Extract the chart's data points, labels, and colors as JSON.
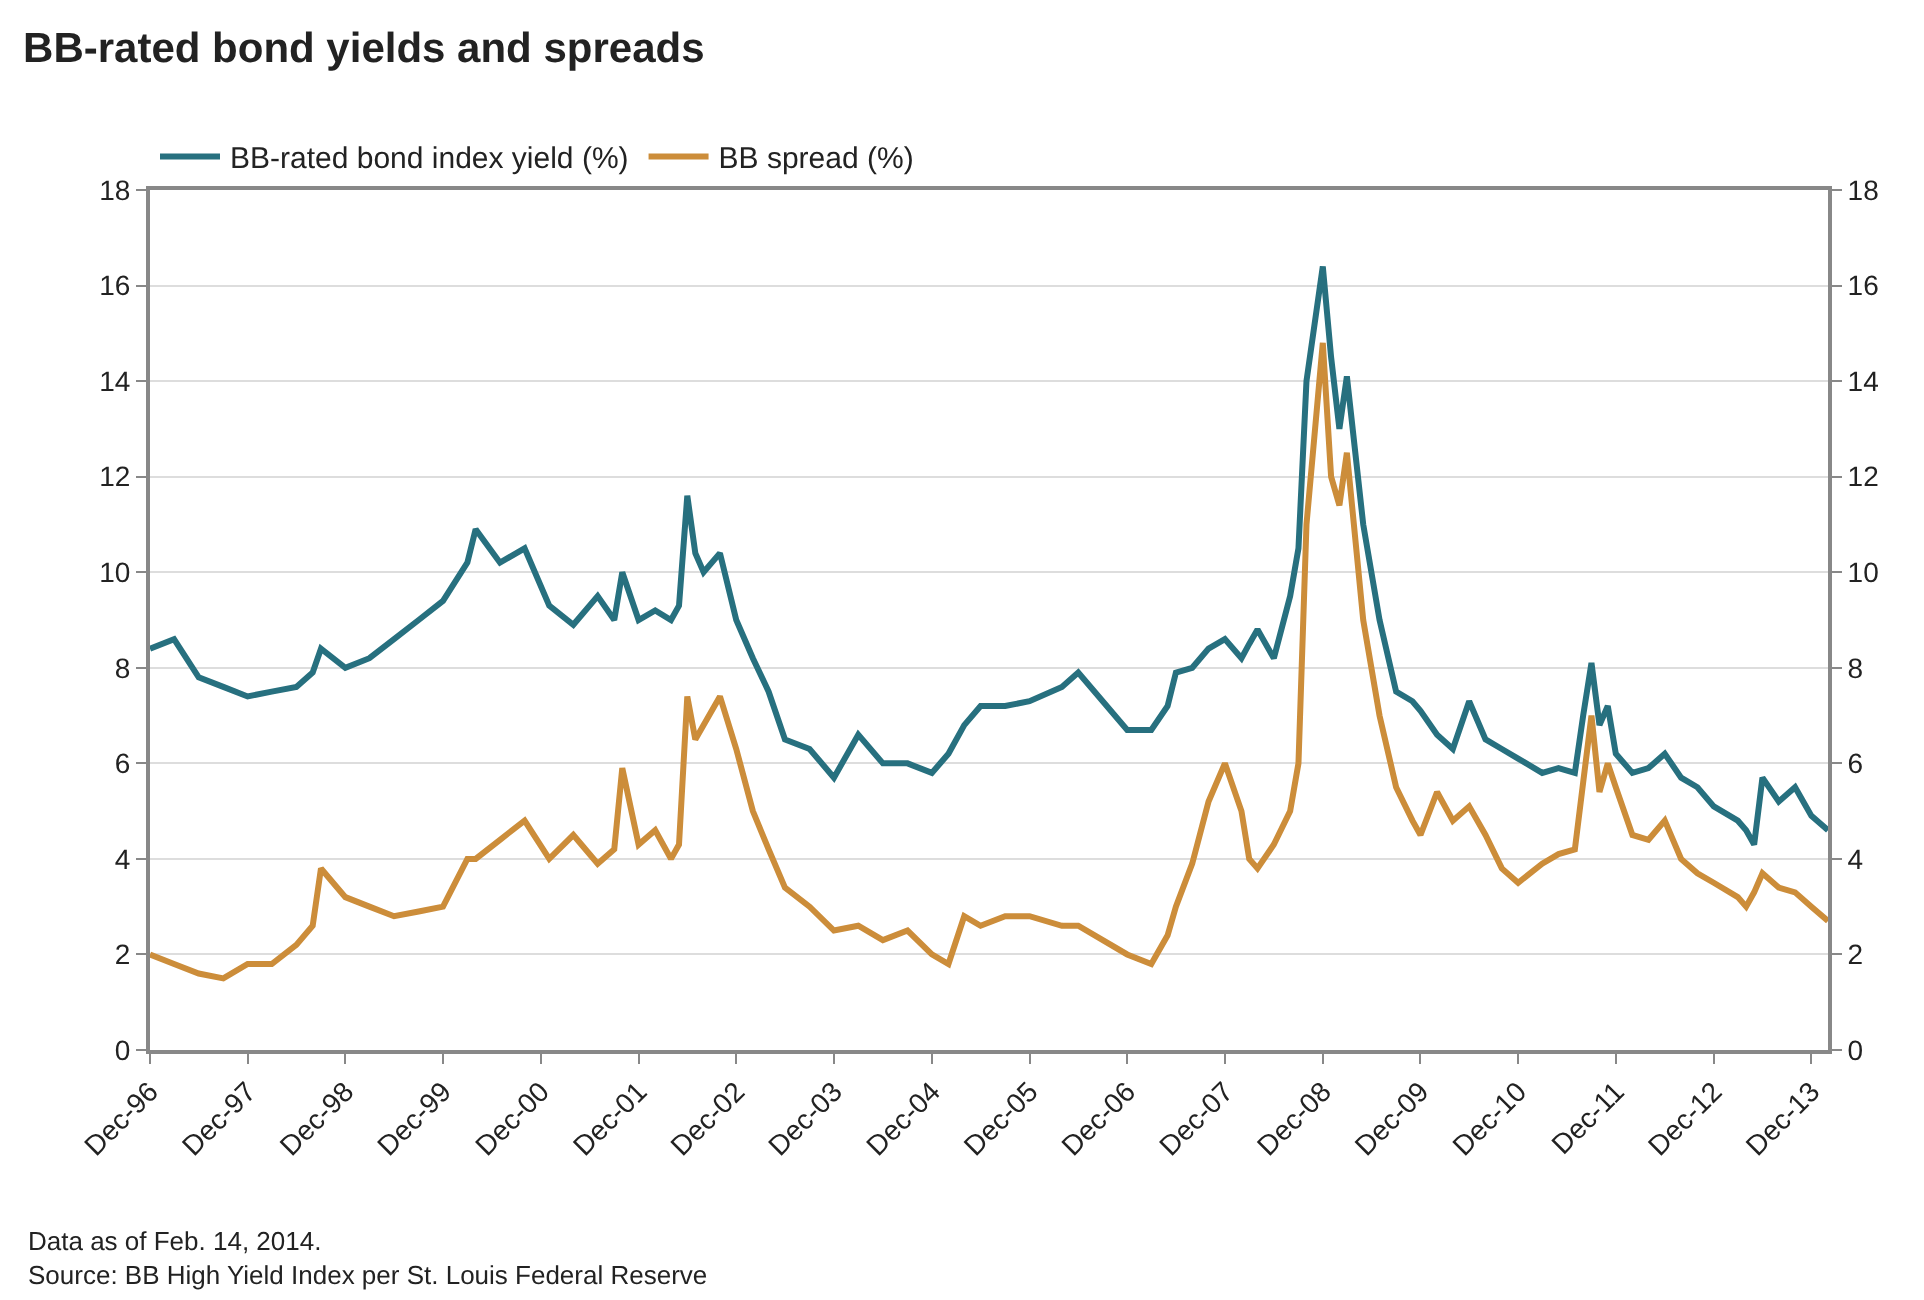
{
  "chart_data": {
    "type": "line",
    "title": "BB-rated bond yields and spreads",
    "x": [
      "1996-12",
      "1997-03",
      "1997-06",
      "1997-09",
      "1997-12",
      "1998-03",
      "1998-06",
      "1998-08",
      "1998-09",
      "1998-12",
      "1999-03",
      "1999-06",
      "1999-09",
      "1999-12",
      "2000-03",
      "2000-04",
      "2000-07",
      "2000-10",
      "2001-01",
      "2001-04",
      "2001-07",
      "2001-09",
      "2001-10",
      "2001-12",
      "2002-02",
      "2002-04",
      "2002-05",
      "2002-06",
      "2002-07",
      "2002-08",
      "2002-10",
      "2002-12",
      "2003-02",
      "2003-04",
      "2003-06",
      "2003-09",
      "2003-12",
      "2004-03",
      "2004-06",
      "2004-09",
      "2004-12",
      "2005-02",
      "2005-04",
      "2005-06",
      "2005-09",
      "2005-12",
      "2006-04",
      "2006-06",
      "2006-12",
      "2007-03",
      "2007-05",
      "2007-06",
      "2007-08",
      "2007-10",
      "2007-12",
      "2008-02",
      "2008-03",
      "2008-04",
      "2008-06",
      "2008-08",
      "2008-09",
      "2008-10",
      "2008-12",
      "2009-01",
      "2009-02",
      "2009-03",
      "2009-05",
      "2009-07",
      "2009-09",
      "2009-11",
      "2009-12",
      "2010-02",
      "2010-04",
      "2010-06",
      "2010-08",
      "2010-10",
      "2010-12",
      "2011-03",
      "2011-05",
      "2011-07",
      "2011-08",
      "2011-09",
      "2011-10",
      "2011-11",
      "2011-12",
      "2012-02",
      "2012-04",
      "2012-06",
      "2012-08",
      "2012-10",
      "2012-12",
      "2013-03",
      "2013-04",
      "2013-05",
      "2013-06",
      "2013-08",
      "2013-10",
      "2013-12",
      "2014-02"
    ],
    "series": [
      {
        "name": "BB-rated bond index yield (%)",
        "color": "#27707f",
        "values": [
          8.4,
          8.6,
          7.8,
          7.6,
          7.4,
          7.5,
          7.6,
          7.9,
          8.4,
          8.0,
          8.2,
          8.6,
          9.0,
          9.4,
          10.2,
          10.9,
          10.2,
          10.5,
          9.3,
          8.9,
          9.5,
          9.0,
          10.0,
          9.0,
          9.2,
          9.0,
          9.3,
          11.6,
          10.4,
          10.0,
          10.4,
          9.0,
          8.2,
          7.5,
          6.5,
          6.3,
          5.7,
          6.6,
          6.0,
          6.0,
          5.8,
          6.2,
          6.8,
          7.2,
          7.2,
          7.3,
          7.6,
          7.9,
          6.7,
          6.7,
          7.2,
          7.9,
          8.0,
          8.4,
          8.6,
          8.2,
          8.5,
          8.8,
          8.2,
          9.5,
          10.5,
          14.0,
          16.4,
          14.5,
          13.0,
          14.1,
          11.0,
          9.0,
          7.5,
          7.3,
          7.1,
          6.6,
          6.3,
          7.3,
          6.5,
          6.3,
          6.1,
          5.8,
          5.9,
          5.8,
          7.0,
          8.1,
          6.8,
          7.2,
          6.2,
          5.8,
          5.9,
          6.2,
          5.7,
          5.5,
          5.1,
          4.8,
          4.6,
          4.3,
          5.7,
          5.2,
          5.5,
          4.9,
          4.6
        ]
      },
      {
        "name": "BB spread (%)",
        "color": "#cc8d3a",
        "values": [
          2.0,
          1.8,
          1.6,
          1.5,
          1.8,
          1.8,
          2.2,
          2.6,
          3.8,
          3.2,
          3.0,
          2.8,
          2.9,
          3.0,
          4.0,
          4.0,
          4.4,
          4.8,
          4.0,
          4.5,
          3.9,
          4.2,
          5.9,
          4.3,
          4.6,
          4.0,
          4.3,
          7.4,
          6.5,
          6.8,
          7.4,
          6.3,
          5.0,
          4.2,
          3.4,
          3.0,
          2.5,
          2.6,
          2.3,
          2.5,
          2.0,
          1.8,
          2.8,
          2.6,
          2.8,
          2.8,
          2.6,
          2.6,
          2.0,
          1.8,
          2.4,
          3.0,
          3.9,
          5.2,
          6.0,
          5.0,
          4.0,
          3.8,
          4.3,
          5.0,
          6.0,
          11.0,
          14.8,
          12.0,
          11.4,
          12.5,
          9.0,
          7.0,
          5.5,
          4.8,
          4.5,
          5.4,
          4.8,
          5.1,
          4.5,
          3.8,
          3.5,
          3.9,
          4.1,
          4.2,
          5.6,
          7.0,
          5.4,
          6.0,
          5.5,
          4.5,
          4.4,
          4.8,
          4.0,
          3.7,
          3.5,
          3.2,
          3.0,
          3.3,
          3.7,
          3.4,
          3.3,
          3.0,
          2.7
        ]
      }
    ],
    "xlim": [
      "1996-12",
      "2014-02"
    ],
    "xticks": [
      {
        "value": "1996-12",
        "label": "Dec-96"
      },
      {
        "value": "1997-12",
        "label": "Dec-97"
      },
      {
        "value": "1998-12",
        "label": "Dec-98"
      },
      {
        "value": "1999-12",
        "label": "Dec-99"
      },
      {
        "value": "2000-12",
        "label": "Dec-00"
      },
      {
        "value": "2001-12",
        "label": "Dec-01"
      },
      {
        "value": "2002-12",
        "label": "Dec-02"
      },
      {
        "value": "2003-12",
        "label": "Dec-03"
      },
      {
        "value": "2004-12",
        "label": "Dec-04"
      },
      {
        "value": "2005-12",
        "label": "Dec-05"
      },
      {
        "value": "2006-12",
        "label": "Dec-06"
      },
      {
        "value": "2007-12",
        "label": "Dec-07"
      },
      {
        "value": "2008-12",
        "label": "Dec-08"
      },
      {
        "value": "2009-12",
        "label": "Dec-09"
      },
      {
        "value": "2010-12",
        "label": "Dec-10"
      },
      {
        "value": "2011-12",
        "label": "Dec-11"
      },
      {
        "value": "2012-12",
        "label": "Dec-12"
      },
      {
        "value": "2013-12",
        "label": "Dec-13"
      }
    ],
    "ylim": [
      0,
      18
    ],
    "yticks": [
      0,
      2,
      4,
      6,
      8,
      10,
      12,
      14,
      16,
      18
    ],
    "y2lim": [
      0,
      18
    ],
    "y2ticks": [
      0,
      2,
      4,
      6,
      8,
      10,
      12,
      14,
      16,
      18
    ],
    "grid": "y",
    "legend": "top",
    "marker": "none",
    "line_style": "solid",
    "annotations": [
      "Data as of Feb. 14, 2014.",
      "Source: BB High Yield Index per St. Louis Federal Reserve"
    ]
  }
}
